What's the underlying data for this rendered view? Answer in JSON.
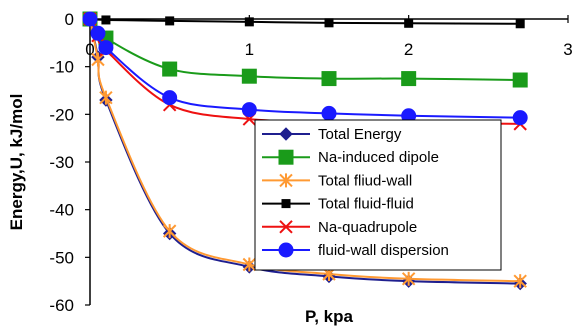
{
  "chart_data": {
    "type": "line",
    "xlabel": "P, kpa",
    "ylabel": "Energy,U, kJ/mol",
    "xlim": [
      0,
      3
    ],
    "ylim": [
      -60,
      0
    ],
    "xticks": [
      0,
      1,
      2,
      3
    ],
    "yticks": [
      0,
      -10,
      -20,
      -30,
      -40,
      -50,
      -60
    ],
    "grid": false,
    "legend_position": "bottom-right",
    "series": [
      {
        "name": "Total Energy",
        "color": "#1f1f8f",
        "marker": "diamond",
        "x": [
          0,
          0.05,
          0.1,
          0.5,
          1.0,
          1.5,
          2.0,
          2.7
        ],
        "y": [
          0,
          -8,
          -17,
          -45,
          -52,
          -54,
          -55,
          -55.5
        ]
      },
      {
        "name": "Na-induced dipole",
        "color": "#1a9b1a",
        "marker": "square",
        "x": [
          0,
          0.1,
          0.5,
          1.0,
          1.5,
          2.0,
          2.7
        ],
        "y": [
          0,
          -4,
          -10.5,
          -12,
          -12.5,
          -12.5,
          -12.8
        ]
      },
      {
        "name": "Total fliud-wall",
        "color": "#ff9a33",
        "marker": "asterisk",
        "x": [
          0,
          0.05,
          0.1,
          0.5,
          1.0,
          1.5,
          2.0,
          2.7
        ],
        "y": [
          0,
          -8.5,
          -16.5,
          -44.5,
          -51.5,
          -53.5,
          -54.5,
          -55
        ]
      },
      {
        "name": "Total fluid-fluid",
        "color": "#000000",
        "marker": "square-small",
        "x": [
          0,
          0.1,
          0.5,
          1.0,
          1.5,
          2.0,
          2.7
        ],
        "y": [
          0,
          -0.2,
          -0.4,
          -0.6,
          -0.8,
          -0.9,
          -1.0
        ]
      },
      {
        "name": "Na-quadrupole",
        "color": "#ee1111",
        "marker": "x",
        "x": [
          0,
          0.05,
          0.1,
          0.5,
          1.0,
          1.5,
          2.0,
          2.7
        ],
        "y": [
          0,
          -3.5,
          -6.5,
          -18,
          -21,
          -21.5,
          -21.8,
          -22
        ]
      },
      {
        "name": "fluid-wall dispersion",
        "color": "#1a1aff",
        "marker": "circle",
        "x": [
          0,
          0.05,
          0.1,
          0.5,
          1.0,
          1.5,
          2.0,
          2.7
        ],
        "y": [
          0,
          -3,
          -6,
          -16.5,
          -19,
          -19.8,
          -20.3,
          -20.7
        ]
      }
    ]
  }
}
